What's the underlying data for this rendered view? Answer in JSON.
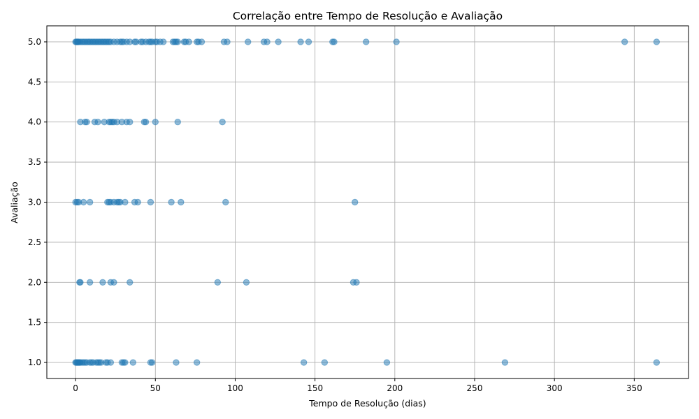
{
  "chart_data": {
    "type": "scatter",
    "title": "Correlação entre Tempo de Resolução e Avaliação",
    "xlabel": "Tempo de Resolução (dias)",
    "ylabel": "Avaliação",
    "xlim": [
      -18,
      384
    ],
    "ylim": [
      0.8,
      5.2
    ],
    "xticks": [
      0,
      50,
      100,
      150,
      200,
      250,
      300,
      350
    ],
    "yticks": [
      1.0,
      1.5,
      2.0,
      2.5,
      3.0,
      3.5,
      4.0,
      4.5,
      5.0
    ],
    "xtick_labels": [
      "0",
      "50",
      "100",
      "150",
      "200",
      "250",
      "300",
      "350"
    ],
    "ytick_labels": [
      "1.0",
      "1.5",
      "2.0",
      "2.5",
      "3.0",
      "3.5",
      "4.0",
      "4.5",
      "5.0"
    ],
    "grid": true,
    "color": "#1f77b4",
    "alpha": 0.5,
    "series": [
      {
        "points": [
          [
            0,
            5
          ],
          [
            0.5,
            5
          ],
          [
            1,
            5
          ],
          [
            1.5,
            5
          ],
          [
            2,
            5
          ],
          [
            3,
            5
          ],
          [
            4,
            5
          ],
          [
            5,
            5
          ],
          [
            6,
            5
          ],
          [
            7,
            5
          ],
          [
            8,
            5
          ],
          [
            9,
            5
          ],
          [
            10,
            5
          ],
          [
            11,
            5
          ],
          [
            12,
            5
          ],
          [
            13,
            5
          ],
          [
            14,
            5
          ],
          [
            15,
            5
          ],
          [
            16,
            5
          ],
          [
            17,
            5
          ],
          [
            18,
            5
          ],
          [
            19,
            5
          ],
          [
            20,
            5
          ],
          [
            21,
            5
          ],
          [
            22,
            5
          ],
          [
            24,
            5
          ],
          [
            26,
            5
          ],
          [
            28,
            5
          ],
          [
            29,
            5
          ],
          [
            30,
            5
          ],
          [
            32,
            5
          ],
          [
            34,
            5
          ],
          [
            37,
            5
          ],
          [
            38,
            5
          ],
          [
            41,
            5
          ],
          [
            42,
            5
          ],
          [
            44,
            5
          ],
          [
            46,
            5
          ],
          [
            47,
            5
          ],
          [
            48,
            5
          ],
          [
            50,
            5
          ],
          [
            51,
            5
          ],
          [
            53,
            5
          ],
          [
            55,
            5
          ],
          [
            61,
            5
          ],
          [
            62,
            5
          ],
          [
            63,
            5
          ],
          [
            64,
            5
          ],
          [
            68,
            5
          ],
          [
            69,
            5
          ],
          [
            71,
            5
          ],
          [
            76,
            5
          ],
          [
            77,
            5
          ],
          [
            79,
            5
          ],
          [
            93,
            5
          ],
          [
            95,
            5
          ],
          [
            108,
            5
          ],
          [
            118,
            5
          ],
          [
            120,
            5
          ],
          [
            127,
            5
          ],
          [
            141,
            5
          ],
          [
            146,
            5
          ],
          [
            161,
            5
          ],
          [
            162,
            5
          ],
          [
            182,
            5
          ],
          [
            201,
            5
          ],
          [
            344,
            5
          ],
          [
            364,
            5
          ],
          [
            3,
            4
          ],
          [
            6,
            4
          ],
          [
            7,
            4
          ],
          [
            12,
            4
          ],
          [
            14,
            4
          ],
          [
            18,
            4
          ],
          [
            21,
            4
          ],
          [
            22,
            4
          ],
          [
            23,
            4
          ],
          [
            24,
            4
          ],
          [
            26,
            4
          ],
          [
            29,
            4
          ],
          [
            32,
            4
          ],
          [
            34,
            4
          ],
          [
            43,
            4
          ],
          [
            44,
            4
          ],
          [
            50,
            4
          ],
          [
            64,
            4
          ],
          [
            92,
            4
          ],
          [
            0,
            3
          ],
          [
            1,
            3
          ],
          [
            2,
            3
          ],
          [
            5,
            3
          ],
          [
            9,
            3
          ],
          [
            20,
            3
          ],
          [
            21,
            3
          ],
          [
            22,
            3
          ],
          [
            24,
            3
          ],
          [
            26,
            3
          ],
          [
            27,
            3
          ],
          [
            28,
            3
          ],
          [
            31,
            3
          ],
          [
            37,
            3
          ],
          [
            39,
            3
          ],
          [
            47,
            3
          ],
          [
            60,
            3
          ],
          [
            66,
            3
          ],
          [
            94,
            3
          ],
          [
            175,
            3
          ],
          [
            2.5,
            2
          ],
          [
            3,
            2
          ],
          [
            9,
            2
          ],
          [
            17,
            2
          ],
          [
            22,
            2
          ],
          [
            24,
            2
          ],
          [
            34,
            2
          ],
          [
            89,
            2
          ],
          [
            107,
            2
          ],
          [
            174,
            2
          ],
          [
            176,
            2
          ],
          [
            0,
            1
          ],
          [
            0.5,
            1
          ],
          [
            1,
            1
          ],
          [
            1.5,
            1
          ],
          [
            2,
            1
          ],
          [
            2.5,
            1
          ],
          [
            3,
            1
          ],
          [
            4,
            1
          ],
          [
            5,
            1
          ],
          [
            6,
            1
          ],
          [
            7,
            1
          ],
          [
            9,
            1
          ],
          [
            10,
            1
          ],
          [
            11,
            1
          ],
          [
            13,
            1
          ],
          [
            14,
            1
          ],
          [
            15,
            1
          ],
          [
            16,
            1
          ],
          [
            19,
            1
          ],
          [
            20,
            1
          ],
          [
            22,
            1
          ],
          [
            29,
            1
          ],
          [
            30,
            1
          ],
          [
            31,
            1
          ],
          [
            36,
            1
          ],
          [
            47,
            1
          ],
          [
            48,
            1
          ],
          [
            63,
            1
          ],
          [
            76,
            1
          ],
          [
            143,
            1
          ],
          [
            156,
            1
          ],
          [
            195,
            1
          ],
          [
            269,
            1
          ],
          [
            364,
            1
          ]
        ]
      }
    ]
  }
}
